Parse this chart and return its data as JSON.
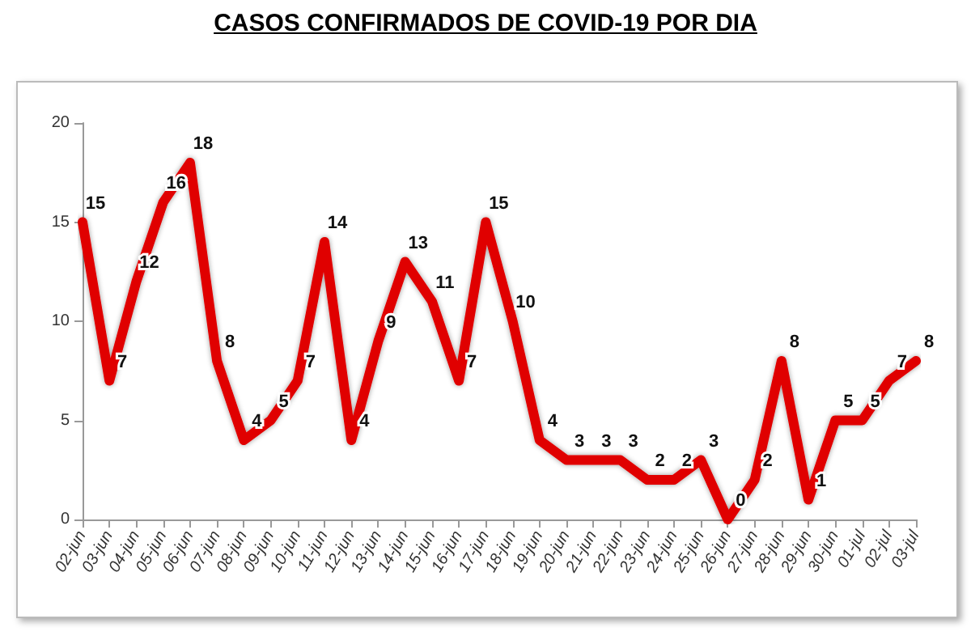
{
  "chart_data": {
    "type": "line",
    "title": "CASOS CONFIRMADOS DE COVID-19 POR DIA",
    "categories": [
      "02-jun",
      "03-jun",
      "04-jun",
      "05-jun",
      "06-jun",
      "07-jun",
      "08-jun",
      "09-jun",
      "10-jun",
      "11-jun",
      "12-jun",
      "13-jun",
      "14-jun",
      "15-jun",
      "16-jun",
      "17-jun",
      "18-jun",
      "19-jun",
      "20-jun",
      "21-jun",
      "22-jun",
      "23-jun",
      "24-jun",
      "25-jun",
      "26-jun",
      "27-jun",
      "28-jun",
      "29-jun",
      "30-jun",
      "01-jul",
      "02-jul",
      "03-jul"
    ],
    "series": [
      {
        "color": "#e00000",
        "values": [
          15,
          7,
          12,
          16,
          18,
          8,
          4,
          5,
          7,
          14,
          4,
          9,
          13,
          11,
          7,
          15,
          10,
          4,
          3,
          3,
          3,
          2,
          2,
          3,
          0,
          2,
          8,
          1,
          5,
          5,
          7,
          8
        ]
      }
    ],
    "ylim": [
      0,
      20
    ],
    "yticks": [
      0,
      5,
      10,
      15,
      20
    ],
    "grid": false,
    "marker": "none",
    "line_style": "solid",
    "data_labels": true
  }
}
